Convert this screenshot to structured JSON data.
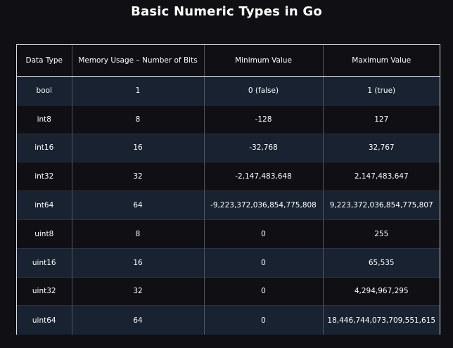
{
  "title": "Basic Numeric Types in Go",
  "table": {
    "headers": [
      "Data Type",
      "Memory Usage – Number of Bits",
      "Minimum Value",
      "Maximum Value"
    ],
    "rows": [
      [
        "bool",
        "1",
        "0 (false)",
        "1 (true)"
      ],
      [
        "int8",
        "8",
        "-128",
        "127"
      ],
      [
        "int16",
        "16",
        "-32,768",
        "32,767"
      ],
      [
        "int32",
        "32",
        "-2,147,483,648",
        "2,147,483,647"
      ],
      [
        "int64",
        "64",
        "-9,223,372,036,854,775,808",
        "9,223,372,036,854,775,807"
      ],
      [
        "uint8",
        "8",
        "0",
        "255"
      ],
      [
        "uint16",
        "16",
        "0",
        "65,535"
      ],
      [
        "uint32",
        "32",
        "0",
        "4,294,967,295"
      ],
      [
        "uint64",
        "64",
        "0",
        "18,446,744,073,709,551,615"
      ]
    ]
  },
  "colors": {
    "background": "#0f0f14",
    "row_alt": "#182230",
    "border": "#d9dde3"
  }
}
